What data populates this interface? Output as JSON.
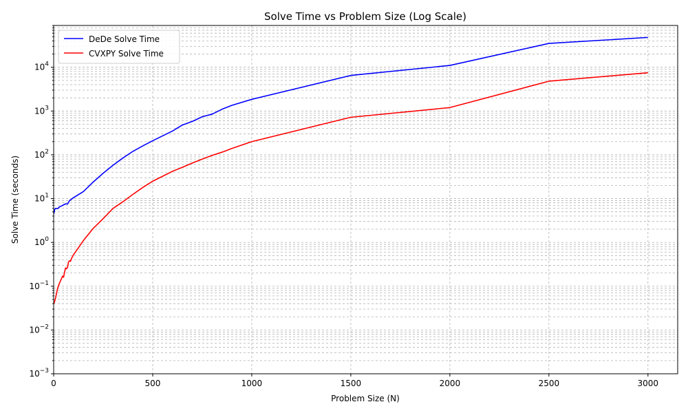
{
  "chart_data": {
    "type": "line",
    "title": "Solve Time vs Problem Size (Log Scale)",
    "xlabel": "Problem Size (N)",
    "ylabel": "Solve Time (seconds)",
    "xlim": [
      0,
      3150
    ],
    "ylim": [
      0.001,
      90000
    ],
    "yscale": "log",
    "grid": true,
    "legend_position": "top-left",
    "x_ticks": [
      0,
      500,
      1000,
      1500,
      2000,
      2500,
      3000
    ],
    "x_tick_labels": [
      "0",
      "500",
      "1000",
      "1500",
      "2000",
      "2500",
      "3000"
    ],
    "y_ticks": [
      0.001,
      0.01,
      0.1,
      1,
      10,
      100,
      1000,
      10000
    ],
    "y_tick_base": "10",
    "y_tick_exponents": [
      "−3",
      "−2",
      "−1",
      "0",
      "1",
      "2",
      "3",
      "4"
    ],
    "series": [
      {
        "name": "DeDe Solve Time",
        "color": "#0000ff",
        "x": [
          1,
          5,
          10,
          20,
          30,
          40,
          50,
          60,
          70,
          80,
          100,
          150,
          200,
          250,
          300,
          350,
          400,
          450,
          500,
          600,
          650,
          700,
          750,
          800,
          850,
          900,
          1000,
          1500,
          2000,
          2500,
          3000
        ],
        "y": [
          4.5,
          5.6,
          6.0,
          5.9,
          6.5,
          6.8,
          7.2,
          7.6,
          7.5,
          9.0,
          10.5,
          14.5,
          24,
          38,
          58,
          85,
          120,
          160,
          210,
          350,
          480,
          580,
          740,
          850,
          1100,
          1350,
          1850,
          6500,
          11000,
          35000,
          48000
        ]
      },
      {
        "name": "CVXPY Solve Time",
        "color": "#ff0000",
        "x": [
          1,
          5,
          10,
          20,
          30,
          40,
          45,
          50,
          55,
          60,
          65,
          70,
          75,
          80,
          85,
          90,
          100,
          150,
          200,
          250,
          300,
          350,
          400,
          450,
          500,
          600,
          650,
          700,
          750,
          800,
          850,
          900,
          1000,
          1500,
          2000,
          2500,
          3000
        ],
        "y": [
          0.04,
          0.045,
          0.055,
          0.09,
          0.12,
          0.15,
          0.17,
          0.16,
          0.21,
          0.26,
          0.25,
          0.27,
          0.36,
          0.38,
          0.37,
          0.43,
          0.52,
          1.1,
          2.1,
          3.5,
          6.0,
          8.5,
          12.5,
          18,
          25,
          42,
          52,
          65,
          80,
          97,
          115,
          140,
          200,
          720,
          1200,
          4800,
          7500
        ]
      }
    ]
  }
}
